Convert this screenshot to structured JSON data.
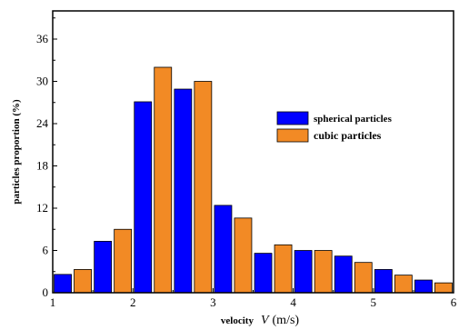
{
  "chart_data": {
    "type": "bar",
    "title": "",
    "ylabel": "particles proportion (%)",
    "xlabel_parts": [
      "velocity",
      "V",
      "(m/s)"
    ],
    "x_ticks": [
      1,
      2,
      3,
      4,
      5,
      6
    ],
    "y_ticks": [
      0,
      6,
      12,
      18,
      24,
      30,
      36
    ],
    "xlim": [
      1,
      6
    ],
    "ylim": [
      0,
      40
    ],
    "legend_position": "upper-right",
    "x": [
      1.25,
      1.75,
      2.25,
      2.75,
      3.25,
      3.75,
      4.25,
      4.75,
      5.25,
      5.75
    ],
    "series": [
      {
        "name": "spherical particles",
        "color": "#0000ff",
        "values": [
          2.6,
          7.3,
          27.1,
          28.9,
          12.4,
          5.6,
          6.0,
          5.2,
          3.3,
          1.8
        ]
      },
      {
        "name": "cubic particles",
        "color": "#f28a25",
        "values": [
          3.3,
          9.0,
          32.0,
          30.0,
          10.6,
          6.8,
          6.0,
          4.3,
          2.5,
          1.4
        ]
      }
    ]
  }
}
